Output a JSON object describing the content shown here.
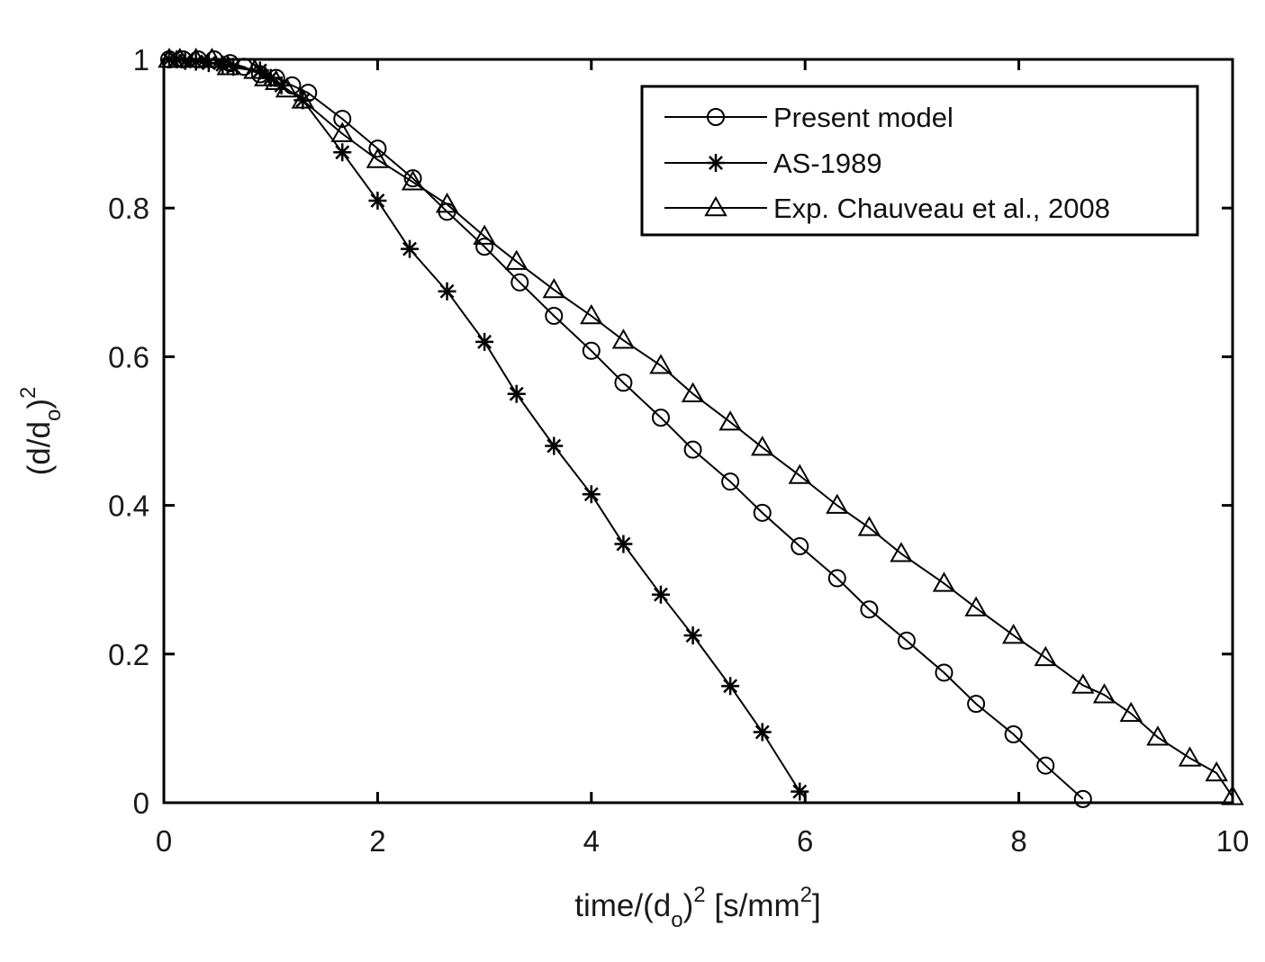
{
  "chart_data": {
    "type": "line",
    "xlabel": {
      "main": "time/(d",
      "sub": "o",
      "sup1": "2",
      "mid": " [s/mm",
      "sup2": "2",
      "end": "]"
    },
    "ylabel": {
      "main": "(d/d",
      "sub": "o",
      "end": ")",
      "sup": "2"
    },
    "xlim": [
      0,
      10
    ],
    "ylim": [
      0,
      1
    ],
    "xticks": [
      0,
      2,
      4,
      6,
      8,
      10
    ],
    "yticks": [
      0,
      0.2,
      0.4,
      0.6,
      0.8,
      1
    ],
    "xtick_labels": [
      "0",
      "2",
      "4",
      "6",
      "8",
      "10"
    ],
    "ytick_labels": [
      "0",
      "0.2",
      "0.4",
      "0.6",
      "0.8",
      "1"
    ],
    "grid": false,
    "legend_position": "top-right",
    "series": [
      {
        "name": "Present model",
        "marker": "circle",
        "x": [
          0.05,
          0.18,
          0.32,
          0.47,
          0.62,
          0.75,
          0.9,
          1.05,
          1.2,
          1.35,
          1.67,
          2.0,
          2.33,
          2.65,
          3.0,
          3.33,
          3.65,
          4.0,
          4.3,
          4.65,
          4.95,
          5.3,
          5.6,
          5.95,
          6.3,
          6.6,
          6.95,
          7.3,
          7.6,
          7.95,
          8.25,
          8.6
        ],
        "y": [
          1.0,
          1.0,
          1.0,
          1.0,
          0.995,
          0.99,
          0.98,
          0.975,
          0.965,
          0.955,
          0.92,
          0.88,
          0.84,
          0.795,
          0.748,
          0.7,
          0.655,
          0.608,
          0.565,
          0.518,
          0.475,
          0.432,
          0.39,
          0.345,
          0.302,
          0.26,
          0.218,
          0.175,
          0.133,
          0.092,
          0.05,
          0.005
        ]
      },
      {
        "name": "AS-1989",
        "marker": "star",
        "x": [
          0.05,
          0.12,
          0.2,
          0.3,
          0.42,
          0.55,
          0.65,
          0.9,
          1.0,
          1.1,
          1.3,
          1.67,
          2.0,
          2.3,
          2.65,
          3.0,
          3.3,
          3.65,
          4.0,
          4.3,
          4.65,
          4.95,
          5.3,
          5.6,
          5.95
        ],
        "y": [
          1.0,
          1.0,
          0.998,
          0.997,
          0.995,
          0.993,
          0.99,
          0.985,
          0.975,
          0.965,
          0.945,
          0.875,
          0.81,
          0.745,
          0.688,
          0.62,
          0.55,
          0.48,
          0.415,
          0.348,
          0.28,
          0.225,
          0.157,
          0.095,
          0.015
        ]
      },
      {
        "name": "Exp. Chauveau et al., 2008",
        "marker": "triangle",
        "x": [
          0.05,
          0.15,
          0.3,
          0.45,
          0.6,
          0.85,
          0.95,
          1.05,
          1.15,
          1.3,
          1.67,
          2.0,
          2.33,
          2.65,
          3.0,
          3.3,
          3.65,
          4.0,
          4.3,
          4.65,
          4.95,
          5.3,
          5.6,
          5.95,
          6.3,
          6.6,
          6.9,
          7.3,
          7.6,
          7.95,
          8.25,
          8.6,
          8.8,
          9.05,
          9.3,
          9.6,
          9.85,
          10.0
        ],
        "y": [
          1.0,
          1.0,
          1.0,
          1.0,
          0.99,
          0.985,
          0.975,
          0.97,
          0.96,
          0.945,
          0.9,
          0.865,
          0.835,
          0.805,
          0.762,
          0.728,
          0.69,
          0.655,
          0.622,
          0.588,
          0.55,
          0.512,
          0.478,
          0.44,
          0.4,
          0.37,
          0.335,
          0.295,
          0.262,
          0.225,
          0.195,
          0.158,
          0.145,
          0.12,
          0.088,
          0.06,
          0.04,
          0.008
        ]
      }
    ]
  }
}
